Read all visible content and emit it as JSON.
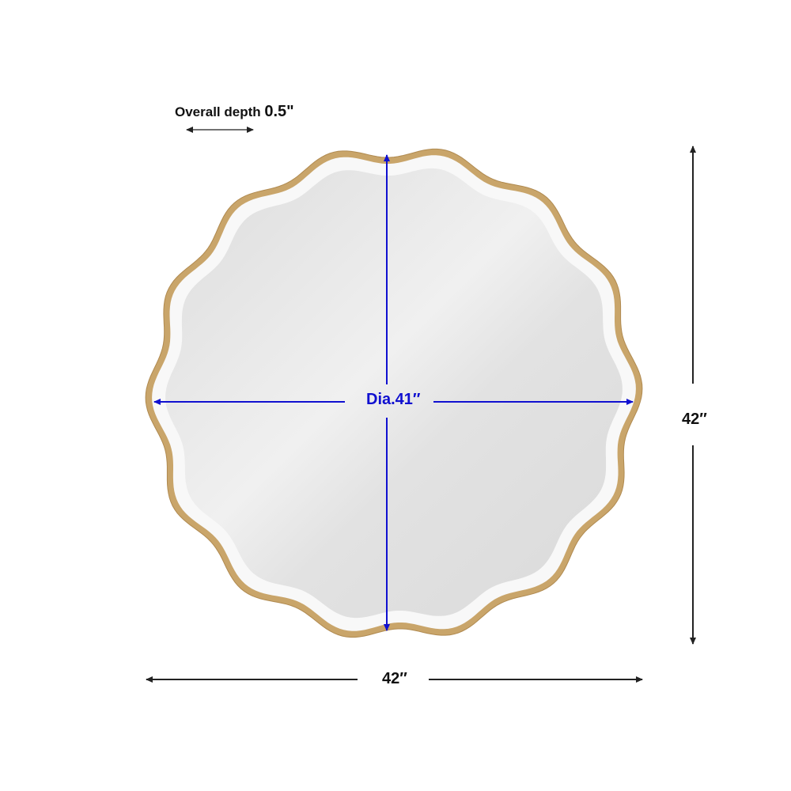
{
  "depth": {
    "label": "Overall depth",
    "value": "0.5\""
  },
  "diameter_label": "Dia.41″",
  "height_label": "42″",
  "width_label": "42″",
  "colors": {
    "frame": "#c9a56a",
    "mirror": "#e6e6e6",
    "bevel": "#f7f7f7",
    "dimension_blue": "#1010d0",
    "dimension_dark": "#222222"
  }
}
